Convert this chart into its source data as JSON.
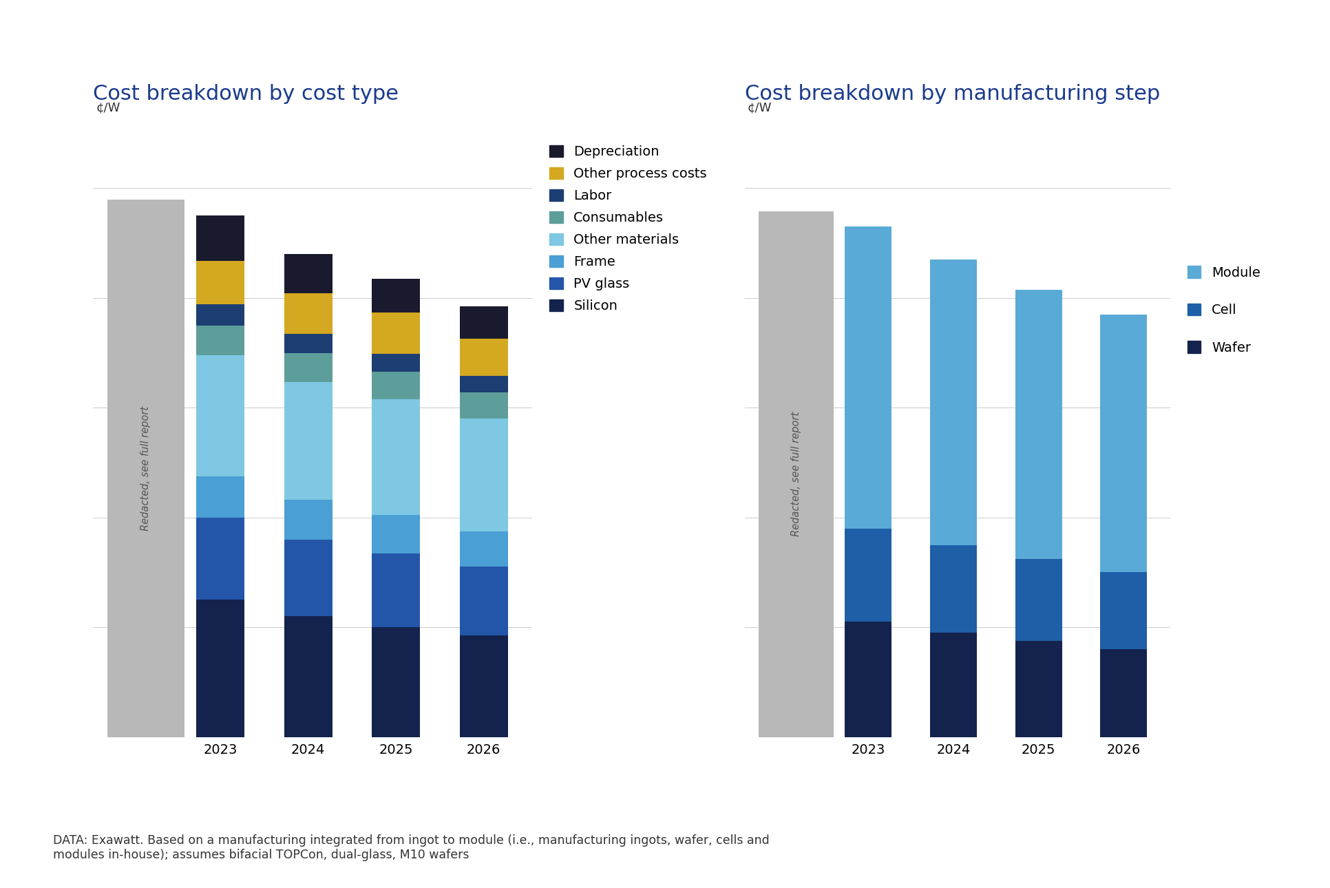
{
  "left_title": "Cost breakdown by cost type",
  "right_title": "Cost breakdown by manufacturing step",
  "ylabel": "¢/W",
  "years": [
    "2023",
    "2024",
    "2025",
    "2026"
  ],
  "left_segments": [
    {
      "label": "Silicon",
      "color": "#13234e",
      "values": [
        2.5,
        2.2,
        2.0,
        1.85
      ]
    },
    {
      "label": "PV glass",
      "color": "#2356a8",
      "values": [
        1.5,
        1.4,
        1.35,
        1.25
      ]
    },
    {
      "label": "Frame",
      "color": "#4a9fd4",
      "values": [
        0.75,
        0.72,
        0.7,
        0.65
      ]
    },
    {
      "label": "Other materials",
      "color": "#7ec8e3",
      "values": [
        2.2,
        2.15,
        2.1,
        2.05
      ]
    },
    {
      "label": "Consumables",
      "color": "#5e9e9a",
      "values": [
        0.55,
        0.52,
        0.5,
        0.48
      ]
    },
    {
      "label": "Labor",
      "color": "#1c3e73",
      "values": [
        0.38,
        0.35,
        0.33,
        0.3
      ]
    },
    {
      "label": "Other process costs",
      "color": "#d4a820",
      "values": [
        0.8,
        0.75,
        0.75,
        0.68
      ]
    },
    {
      "label": "Depreciation",
      "color": "#1a1a2e",
      "values": [
        0.82,
        0.71,
        0.62,
        0.59
      ]
    }
  ],
  "right_segments": [
    {
      "label": "Wafer",
      "color": "#13234e",
      "values": [
        2.1,
        1.9,
        1.75,
        1.6
      ]
    },
    {
      "label": "Cell",
      "color": "#1e5fa8",
      "values": [
        1.7,
        1.6,
        1.5,
        1.4
      ]
    },
    {
      "label": "Module",
      "color": "#5aaad8",
      "values": [
        5.5,
        5.2,
        4.9,
        4.7
      ]
    }
  ],
  "redacted_color": "#b8b8b8",
  "redacted_label": "Redacted, see full report",
  "background_color": "#ffffff",
  "title_color": "#1a3a8c",
  "title_fontsize": 22,
  "ylabel_fontsize": 13,
  "tick_fontsize": 14,
  "legend_fontsize": 14,
  "footnote": "DATA: Exawatt. Based on a manufacturing integrated from ingot to module (i.e., manufacturing ingots, wafer, cells and\nmodules in-house); assumes bifacial TOPCon, dual-glass, M10 wafers",
  "footnote_fontsize": 12.5,
  "bar_width": 0.55,
  "ylim": [
    0,
    11
  ],
  "grid_color": "#cccccc",
  "left_legend_order": [
    "Depreciation",
    "Other process costs",
    "Labor",
    "Consumables",
    "Other materials",
    "Frame",
    "PV glass",
    "Silicon"
  ],
  "right_legend_order": [
    "Module",
    "Cell",
    "Wafer"
  ]
}
